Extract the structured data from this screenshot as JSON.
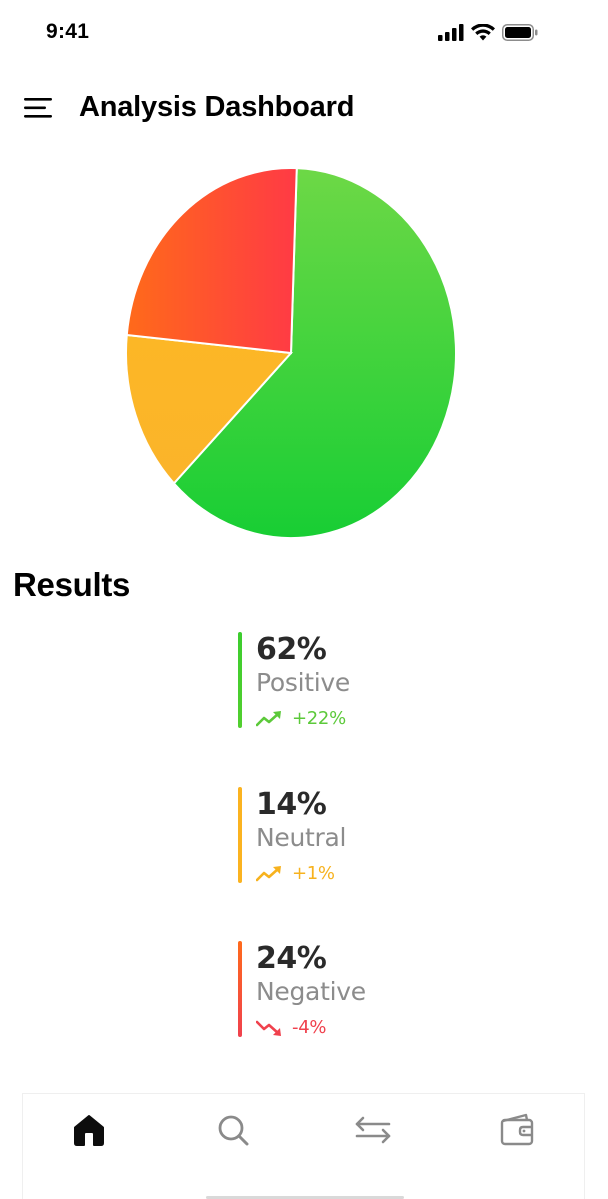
{
  "status_bar": {
    "time": "9:41",
    "icons": [
      "cellular-signal-icon",
      "wifi-icon",
      "battery-icon"
    ]
  },
  "header": {
    "menu_icon": "hamburger-menu-icon",
    "title": "Analysis Dashboard"
  },
  "chart_data": {
    "type": "pie",
    "title": "",
    "categories": [
      "Positive",
      "Neutral",
      "Negative"
    ],
    "values": [
      62,
      14,
      24
    ],
    "colors": {
      "Positive": [
        "#67d63f",
        "#1ccf35"
      ],
      "Neutral": [
        "#fcb726",
        "#fbb72a"
      ],
      "Negative": [
        "#ff6a1c",
        "#ff3c44"
      ]
    },
    "legend": "none"
  },
  "results": {
    "title": "Results",
    "items": [
      {
        "percent": "62%",
        "label": "Positive",
        "change": "+22%",
        "trend": "up",
        "color": "#3ccd2e",
        "change_color": "#5cc93a"
      },
      {
        "percent": "14%",
        "label": "Neutral",
        "change": "+1%",
        "trend": "up",
        "color": "#fbb320",
        "change_color": "#f7b21e"
      },
      {
        "percent": "24%",
        "label": "Negative",
        "change": "-4%",
        "trend": "down",
        "color": "#ff5a2a",
        "change_color": "#f0414d"
      }
    ]
  },
  "bottom_nav": {
    "items": [
      {
        "name": "home",
        "icon": "home-icon",
        "active": true
      },
      {
        "name": "search",
        "icon": "search-icon",
        "active": false
      },
      {
        "name": "transfer",
        "icon": "transfer-arrows-icon",
        "active": false
      },
      {
        "name": "wallet",
        "icon": "wallet-icon",
        "active": false
      }
    ]
  }
}
